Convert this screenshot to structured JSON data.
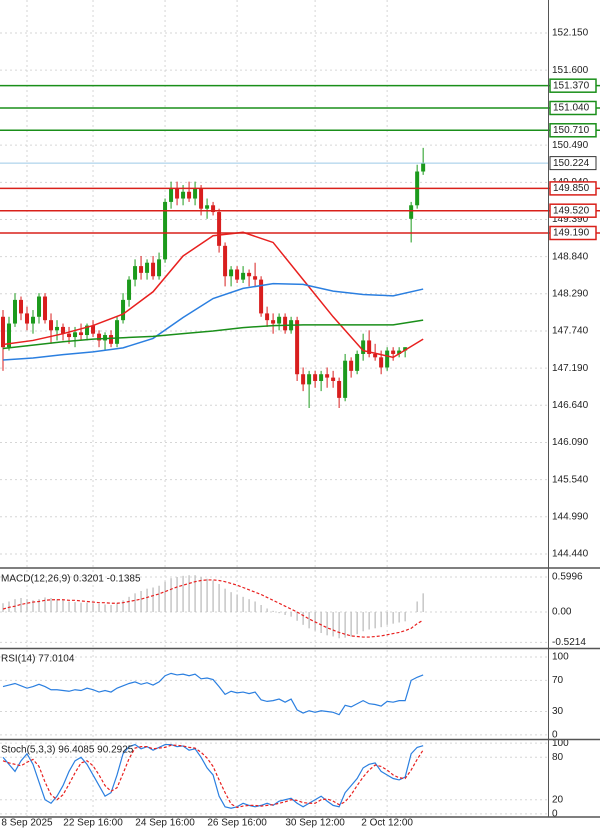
{
  "chart_data": [
    {
      "type": "candlestick",
      "xlim": [
        -0.5,
        90.8
      ],
      "ylim": [
        144.262,
        152.638
      ],
      "yticks": [
        {
          "value": 152.15,
          "label": "152.150"
        },
        {
          "value": 151.6,
          "label": "151.600"
        },
        {
          "value": 150.49,
          "label": "150.490"
        },
        {
          "value": 149.94,
          "label": "149.940"
        },
        {
          "value": 149.39,
          "label": "149.390"
        },
        {
          "value": 148.84,
          "label": "148.840"
        },
        {
          "value": 148.29,
          "label": "148.290"
        },
        {
          "value": 147.74,
          "label": "147.740"
        },
        {
          "value": 147.19,
          "label": "147.190"
        },
        {
          "value": 146.64,
          "label": "146.640"
        },
        {
          "value": 146.09,
          "label": "146.090"
        },
        {
          "value": 145.54,
          "label": "145.540"
        },
        {
          "value": 144.99,
          "label": "144.990"
        },
        {
          "value": 144.44,
          "label": "144.440"
        }
      ],
      "xticks": [
        {
          "value": 4,
          "label": "8 Sep 2025"
        },
        {
          "value": 15,
          "label": "22 Sep 16:00"
        },
        {
          "value": 27,
          "label": "24 Sep 16:00"
        },
        {
          "value": 39,
          "label": "26 Sep 16:00"
        },
        {
          "value": 52,
          "label": "30 Sep 12:00"
        },
        {
          "value": 64,
          "label": "2 Oct 12:00"
        }
      ],
      "up_color": "#1c9a1c",
      "down_color": "#d81e1e",
      "open": [
        147.95,
        147.5,
        147.85,
        148.2,
        148.0,
        147.85,
        147.95,
        148.25,
        147.9,
        147.75,
        147.8,
        147.7,
        147.65,
        147.72,
        147.68,
        147.82,
        147.7,
        147.6,
        147.68,
        147.55,
        147.9,
        148.2,
        148.5,
        148.7,
        148.6,
        148.75,
        148.55,
        148.8,
        149.65,
        149.85,
        149.7,
        149.8,
        149.7,
        149.85,
        149.55,
        149.6,
        149.5,
        149.0,
        148.55,
        148.65,
        148.5,
        148.6,
        148.55,
        148.5,
        148.0,
        147.9,
        147.85,
        147.95,
        147.75,
        147.9,
        147.1,
        146.95,
        147.1,
        147.0,
        147.1,
        147.05,
        147.0,
        146.75,
        147.3,
        147.15,
        147.4,
        147.6,
        147.4,
        147.35,
        147.2,
        147.45,
        147.4,
        147.45,
        149.4,
        149.6,
        150.1
      ],
      "high": [
        148.05,
        147.95,
        148.3,
        148.25,
        148.1,
        148.05,
        148.3,
        148.3,
        148.0,
        147.9,
        147.85,
        147.8,
        147.8,
        147.85,
        147.85,
        147.9,
        147.75,
        147.72,
        147.75,
        147.95,
        148.3,
        148.55,
        148.8,
        148.85,
        148.8,
        148.85,
        148.9,
        149.7,
        149.95,
        149.95,
        149.9,
        149.95,
        149.95,
        149.9,
        149.7,
        149.65,
        149.55,
        149.05,
        148.7,
        148.7,
        148.7,
        148.65,
        148.75,
        148.55,
        148.1,
        148.0,
        148.0,
        148.0,
        147.95,
        147.95,
        147.2,
        147.15,
        147.15,
        147.15,
        147.2,
        147.15,
        147.05,
        147.4,
        147.35,
        147.45,
        147.7,
        147.75,
        147.55,
        147.45,
        147.5,
        147.5,
        147.5,
        147.5,
        149.65,
        150.2,
        150.45
      ],
      "low": [
        147.15,
        147.45,
        147.8,
        147.9,
        147.75,
        147.7,
        147.85,
        147.85,
        147.55,
        147.6,
        147.6,
        147.55,
        147.5,
        147.6,
        147.6,
        147.65,
        147.5,
        147.45,
        147.5,
        147.5,
        147.85,
        148.1,
        148.4,
        148.5,
        148.5,
        148.5,
        148.5,
        148.75,
        149.55,
        149.6,
        149.6,
        149.65,
        149.6,
        149.45,
        149.4,
        149.45,
        148.9,
        148.4,
        148.4,
        148.45,
        148.45,
        148.4,
        148.4,
        147.95,
        147.8,
        147.7,
        147.75,
        147.7,
        147.7,
        147.0,
        146.85,
        146.6,
        146.9,
        146.85,
        146.9,
        146.9,
        146.6,
        146.7,
        147.05,
        147.1,
        147.3,
        147.35,
        147.3,
        147.1,
        147.15,
        147.3,
        147.35,
        147.35,
        149.05,
        149.55,
        150.05
      ],
      "close": [
        147.5,
        147.85,
        148.2,
        148.0,
        147.85,
        147.95,
        148.25,
        147.9,
        147.75,
        147.8,
        147.7,
        147.65,
        147.72,
        147.68,
        147.82,
        147.7,
        147.6,
        147.68,
        147.55,
        147.9,
        148.2,
        148.5,
        148.7,
        148.6,
        148.75,
        148.55,
        148.8,
        149.65,
        149.85,
        149.7,
        149.8,
        149.7,
        149.85,
        149.55,
        149.6,
        149.5,
        149.0,
        148.55,
        148.65,
        148.5,
        148.6,
        148.55,
        148.5,
        148.0,
        147.9,
        147.85,
        147.95,
        147.75,
        147.9,
        147.1,
        146.95,
        147.1,
        147.0,
        147.1,
        147.05,
        147.0,
        146.75,
        147.3,
        147.15,
        147.4,
        147.6,
        147.4,
        147.35,
        147.2,
        147.45,
        147.4,
        147.45,
        147.5,
        149.6,
        150.1,
        150.224
      ],
      "moving_averages": [
        {
          "color": "#e8201f",
          "x": [
            0,
            5,
            10,
            15,
            20,
            25,
            30,
            35,
            40,
            45,
            50,
            55,
            60,
            65,
            70
          ],
          "values": [
            147.54,
            147.6,
            147.7,
            147.82,
            147.99,
            148.32,
            148.85,
            149.15,
            149.2,
            149.05,
            148.5,
            147.95,
            147.45,
            147.35,
            147.62
          ]
        },
        {
          "color": "#2b7fe0",
          "x": [
            0,
            5,
            10,
            15,
            20,
            25,
            30,
            35,
            40,
            45,
            50,
            55,
            60,
            65,
            70
          ],
          "values": [
            147.31,
            147.34,
            147.39,
            147.43,
            147.49,
            147.63,
            147.94,
            148.22,
            148.37,
            148.44,
            148.43,
            148.33,
            148.28,
            148.26,
            148.36
          ]
        },
        {
          "color": "#1a8f1a",
          "x": [
            0,
            5,
            10,
            15,
            20,
            25,
            30,
            35,
            40,
            45,
            50,
            55,
            60,
            65,
            70
          ],
          "values": [
            147.48,
            147.53,
            147.58,
            147.62,
            147.64,
            147.66,
            147.7,
            147.74,
            147.79,
            147.82,
            147.83,
            147.83,
            147.83,
            147.83,
            147.9
          ]
        }
      ],
      "levels": [
        {
          "value": 151.37,
          "label": "151.370",
          "color": "#1a8f1a"
        },
        {
          "value": 151.04,
          "label": "151.040",
          "color": "#1a8f1a"
        },
        {
          "value": 150.71,
          "label": "150.710",
          "color": "#1a8f1a"
        },
        {
          "value": 149.85,
          "label": "149.850",
          "color": "#d9201a"
        },
        {
          "value": 149.52,
          "label": "149.520",
          "color": "#d9201a"
        },
        {
          "value": 149.19,
          "label": "149.190",
          "color": "#d9201a"
        }
      ],
      "current_price": {
        "value": 150.224,
        "label": "150.224",
        "color": "#9cc9e8"
      }
    },
    {
      "type": "macd",
      "title": "MACD(12,26,9) 0.3201 -0.1385",
      "ylim": [
        -0.6,
        0.72
      ],
      "yticks": [
        0.5996,
        {
          "value": 0,
          "label": "0.00"
        },
        -0.5214
      ],
      "series": [
        {
          "style": "bar",
          "color": "#b8b8b8",
          "values": [
            0.15,
            0.18,
            0.22,
            0.24,
            0.22,
            0.2,
            0.22,
            0.25,
            0.24,
            0.22,
            0.2,
            0.18,
            0.17,
            0.16,
            0.16,
            0.15,
            0.14,
            0.13,
            0.12,
            0.15,
            0.2,
            0.26,
            0.32,
            0.36,
            0.4,
            0.42,
            0.45,
            0.52,
            0.58,
            0.6,
            0.62,
            0.63,
            0.63,
            0.6,
            0.57,
            0.54,
            0.48,
            0.4,
            0.34,
            0.3,
            0.26,
            0.22,
            0.18,
            0.12,
            0.06,
            0.02,
            -0.02,
            -0.05,
            -0.08,
            -0.15,
            -0.22,
            -0.28,
            -0.32,
            -0.36,
            -0.4,
            -0.42,
            -0.45,
            -0.44,
            -0.42,
            -0.38,
            -0.33,
            -0.3,
            -0.28,
            -0.26,
            -0.22,
            -0.2,
            -0.18,
            -0.16,
            0.0,
            0.18,
            0.32
          ]
        },
        {
          "style": "dashed",
          "color": "#e8201f",
          "values": [
            0.05,
            0.08,
            0.1,
            0.13,
            0.15,
            0.17,
            0.18,
            0.2,
            0.21,
            0.21,
            0.21,
            0.2,
            0.2,
            0.19,
            0.18,
            0.17,
            0.16,
            0.16,
            0.15,
            0.15,
            0.16,
            0.18,
            0.2,
            0.22,
            0.25,
            0.28,
            0.31,
            0.35,
            0.39,
            0.43,
            0.46,
            0.49,
            0.52,
            0.54,
            0.55,
            0.55,
            0.54,
            0.52,
            0.49,
            0.46,
            0.42,
            0.38,
            0.34,
            0.3,
            0.25,
            0.2,
            0.15,
            0.1,
            0.05,
            0.0,
            -0.06,
            -0.12,
            -0.17,
            -0.22,
            -0.27,
            -0.31,
            -0.35,
            -0.38,
            -0.41,
            -0.42,
            -0.43,
            -0.43,
            -0.42,
            -0.41,
            -0.39,
            -0.37,
            -0.35,
            -0.32,
            -0.28,
            -0.2,
            -0.14
          ]
        }
      ]
    },
    {
      "type": "line",
      "title": "RSI(14) 77.0104",
      "ylim": [
        -4,
        109
      ],
      "yticks": [
        100,
        70,
        30,
        0
      ],
      "series": [
        {
          "style": "solid",
          "color": "#2b7fe0",
          "values": [
            62,
            64,
            66,
            63,
            60,
            62,
            65,
            62,
            58,
            58,
            57,
            56,
            58,
            57,
            60,
            58,
            55,
            57,
            55,
            60,
            63,
            66,
            68,
            65,
            67,
            64,
            68,
            76,
            79,
            77,
            78,
            76,
            78,
            72,
            73,
            71,
            62,
            52,
            56,
            54,
            55,
            53,
            55,
            45,
            43,
            44,
            46,
            42,
            46,
            32,
            28,
            31,
            29,
            31,
            30,
            29,
            26,
            38,
            36,
            40,
            44,
            40,
            39,
            37,
            43,
            42,
            44,
            44,
            70,
            74,
            77
          ]
        }
      ]
    },
    {
      "type": "line",
      "title": "Stoch(5,3,3) 96.4085 90.2925",
      "ylim": [
        -3,
        103
      ],
      "yticks": [
        100,
        80,
        20,
        0
      ],
      "series": [
        {
          "style": "solid",
          "color": "#2b7fe0",
          "values": [
            80,
            70,
            60,
            75,
            85,
            70,
            45,
            20,
            15,
            25,
            40,
            60,
            75,
            80,
            70,
            55,
            40,
            25,
            30,
            55,
            85,
            95,
            98,
            92,
            95,
            90,
            94,
            98,
            98,
            95,
            96,
            90,
            92,
            80,
            65,
            55,
            25,
            10,
            8,
            10,
            15,
            12,
            10,
            12,
            15,
            12,
            18,
            20,
            22,
            15,
            10,
            15,
            20,
            25,
            18,
            12,
            10,
            30,
            40,
            50,
            65,
            70,
            72,
            60,
            55,
            50,
            48,
            52,
            85,
            94,
            96.41
          ]
        },
        {
          "style": "dashed",
          "color": "#e8201f",
          "values": [
            75,
            72,
            70,
            68,
            73,
            77,
            67,
            45,
            27,
            20,
            27,
            42,
            58,
            72,
            75,
            68,
            55,
            40,
            32,
            37,
            57,
            78,
            93,
            95,
            95,
            92,
            93,
            94,
            97,
            97,
            96,
            94,
            93,
            87,
            79,
            67,
            48,
            30,
            14,
            9,
            11,
            12,
            12,
            11,
            12,
            13,
            15,
            17,
            20,
            19,
            16,
            15,
            15,
            20,
            21,
            18,
            13,
            17,
            27,
            40,
            52,
            62,
            69,
            67,
            62,
            55,
            51,
            50,
            62,
            77,
            90.29
          ]
        }
      ]
    }
  ]
}
